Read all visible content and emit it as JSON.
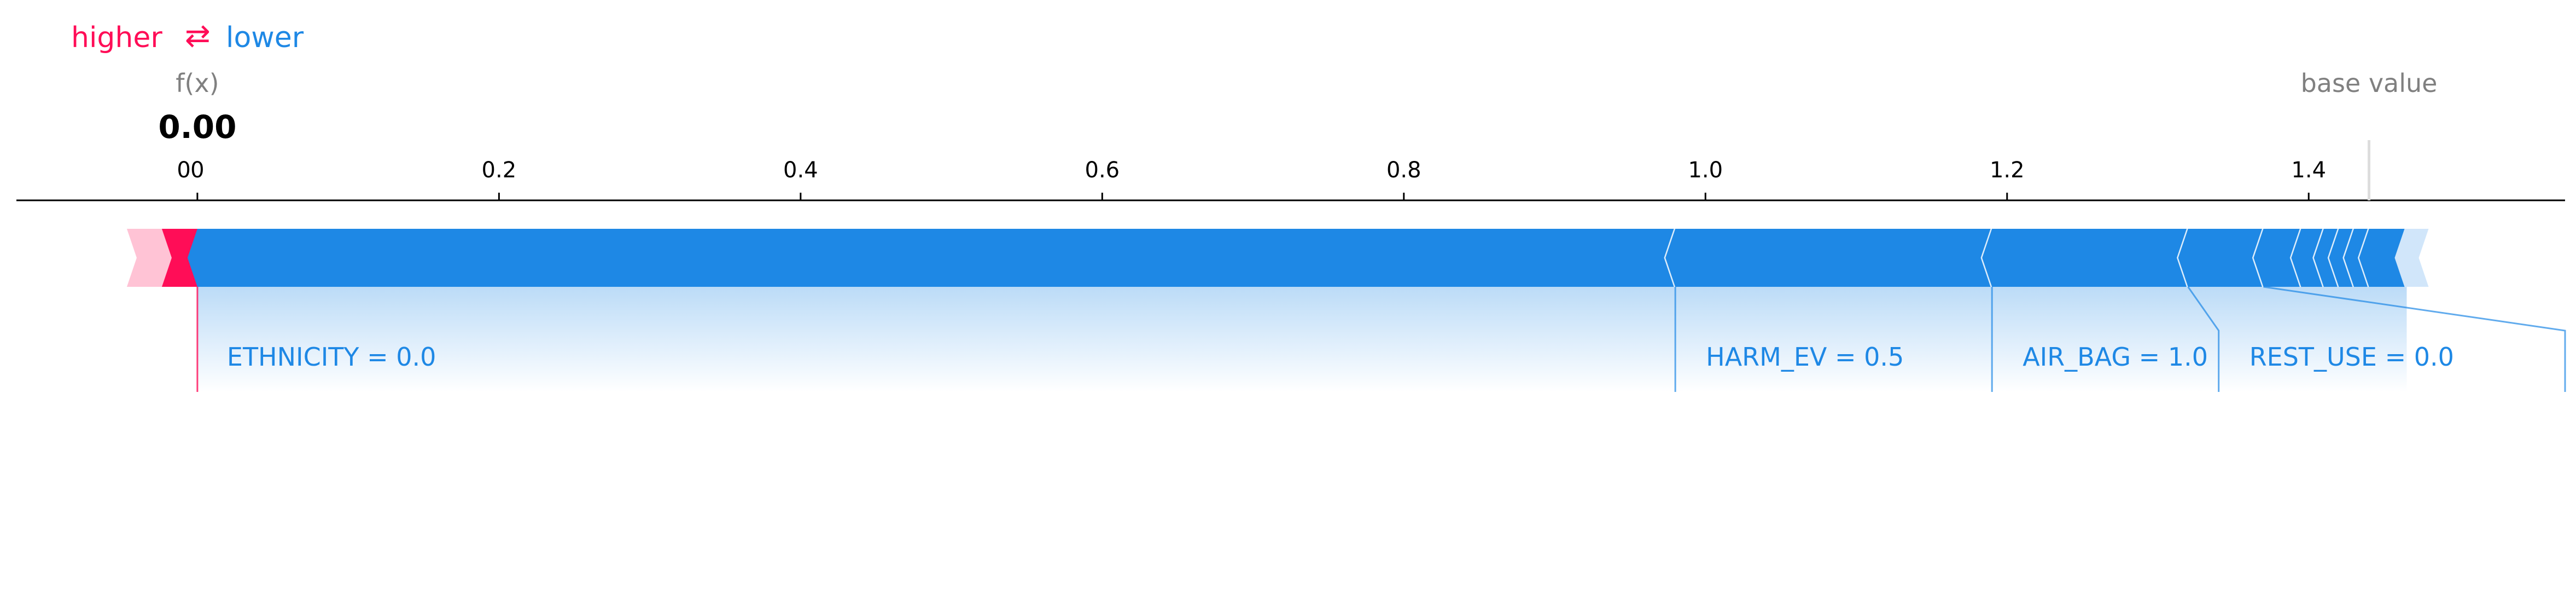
{
  "legend": {
    "higher_label": "higher",
    "lower_label": "lower",
    "arrow_glyph": "⇄",
    "higher_color": "#ff0d57",
    "lower_color": "#1e88e5"
  },
  "output": {
    "fx_label": "f(x)",
    "fx_value": "0.00",
    "base_label": "base value"
  },
  "colors": {
    "positive": "#ff0d57",
    "negative": "#1e88e5",
    "positive_light": "#ffc3d5",
    "negative_light": "#d1e6fa",
    "text_gray": "#808080",
    "axis": "#000000"
  },
  "chart_data": {
    "type": "force",
    "xlim": [
      -0.12,
      1.57
    ],
    "ticks": [
      {
        "value": 0.0,
        "label": "0"
      },
      {
        "value": 0.2,
        "label": "0.2"
      },
      {
        "value": 0.4,
        "label": "0.4"
      },
      {
        "value": 0.6,
        "label": "0.6"
      },
      {
        "value": 0.8,
        "label": "0.8"
      },
      {
        "value": 1.0,
        "label": "1.0"
      },
      {
        "value": 1.2,
        "label": "1.2"
      },
      {
        "value": 1.4,
        "label": "1.4"
      }
    ],
    "extra_tick_label": {
      "value": -0.009,
      "label": "0"
    },
    "output_value": 0.0,
    "base_value": 1.44,
    "positive_features": [
      {
        "label": "ETHNICITY  = 0.0",
        "start": -0.025,
        "end": 0.0,
        "labeled": true
      }
    ],
    "negative_features": [
      {
        "label": "",
        "start": 0.0,
        "end": 0.98,
        "labeled": false
      },
      {
        "label": "HARM_EV = 0.5",
        "start": 0.98,
        "end": 1.19,
        "labeled": true
      },
      {
        "label": "AIR_BAG = 1.0",
        "start": 1.19,
        "end": 1.32,
        "labeled": true
      },
      {
        "label": "REST_USE = 0.0",
        "start": 1.32,
        "end": 1.37,
        "labeled": true
      },
      {
        "label": "",
        "start": 1.37,
        "end": 1.395,
        "labeled": false
      },
      {
        "label": "",
        "start": 1.395,
        "end": 1.41,
        "labeled": false
      },
      {
        "label": "",
        "start": 1.41,
        "end": 1.42,
        "labeled": false
      },
      {
        "label": "",
        "start": 1.42,
        "end": 1.43,
        "labeled": false
      },
      {
        "label": "",
        "start": 1.43,
        "end": 1.44,
        "labeled": false
      },
      {
        "label": "",
        "start": 1.44,
        "end": 1.465,
        "labeled": false
      }
    ]
  }
}
